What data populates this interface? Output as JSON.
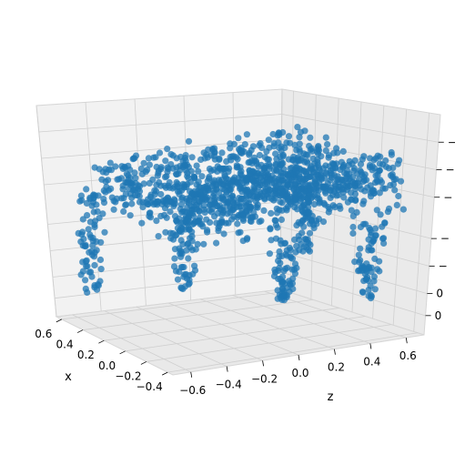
{
  "chart_data": {
    "type": "scatter",
    "projection": "3d",
    "x_axis": {
      "label": "x",
      "ticks": [
        {
          "value": 0.6,
          "label": "0.6"
        },
        {
          "value": 0.4,
          "label": "0.4"
        },
        {
          "value": 0.2,
          "label": "0.2"
        },
        {
          "value": 0.0,
          "label": "0.0"
        },
        {
          "value": -0.2,
          "label": "−0.2"
        },
        {
          "value": -0.4,
          "label": "−0.4"
        }
      ],
      "range": [
        -0.45,
        0.65
      ]
    },
    "z_axis": {
      "label": "z",
      "ticks": [
        {
          "value": -0.6,
          "label": "−0.6"
        },
        {
          "value": -0.4,
          "label": "−0.4"
        },
        {
          "value": -0.2,
          "label": "−0.2"
        },
        {
          "value": 0.0,
          "label": "0.0"
        },
        {
          "value": 0.2,
          "label": "0.2"
        },
        {
          "value": 0.4,
          "label": "0.4"
        },
        {
          "value": 0.6,
          "label": "0.6"
        }
      ],
      "range": [
        -0.7,
        0.7
      ]
    },
    "vertical_axis": {
      "label": "",
      "ticks": [
        {
          "value": 0.3,
          "label": "−"
        },
        {
          "value": 0.2,
          "label": "−"
        },
        {
          "value": 0.1,
          "label": "−"
        },
        {
          "value": -0.05,
          "label": "−"
        },
        {
          "value": -0.15,
          "label": "−"
        },
        {
          "value": -0.25,
          "label": "0"
        },
        {
          "value": -0.33,
          "label": "0"
        }
      ],
      "range": [
        -0.4,
        0.4
      ]
    },
    "grid": true,
    "pane_color": "#f2f2f2",
    "point_color": "#1f77b4",
    "series": [
      {
        "description_of_shape": "point cloud",
        "points_note": "",
        "components": [
          {
            "kind": "seat",
            "x": [
              -0.45,
              0.55
            ],
            "z": [
              -0.6,
              0.6
            ],
            "y": [
              0.05,
              0.22
            ]
          },
          {
            "kind": "back-edge",
            "x": [
              -0.45,
              -0.35
            ],
            "z": [
              -0.6,
              0.6
            ],
            "y": [
              0.18,
              0.3
            ]
          },
          {
            "kind": "leg",
            "x": 0.5,
            "z": -0.6,
            "y": [
              -0.3,
              0.1
            ]
          },
          {
            "kind": "leg",
            "x": 0.45,
            "z": -0.1,
            "y": [
              -0.33,
              0.05
            ]
          },
          {
            "kind": "leg",
            "x": -0.35,
            "z": 0.45,
            "y": [
              -0.25,
              0.05
            ]
          },
          {
            "kind": "leg",
            "x": -0.4,
            "z": -0.05,
            "y": [
              -0.2,
              0.05
            ]
          },
          {
            "kind": "leg",
            "x": 0.5,
            "z": 0.6,
            "y": [
              -0.28,
              0.1
            ]
          }
        ]
      }
    ]
  }
}
